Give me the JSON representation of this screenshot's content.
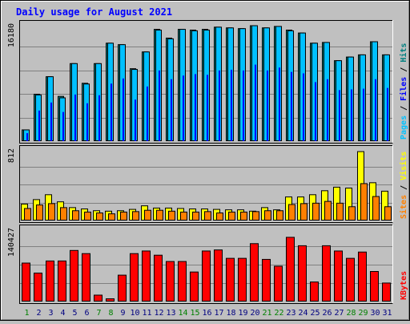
{
  "chart_data": {
    "type": "bar",
    "title": "Daily usage for August 2021",
    "categories": [
      "1",
      "2",
      "3",
      "4",
      "5",
      "6",
      "7",
      "8",
      "9",
      "10",
      "11",
      "12",
      "13",
      "14",
      "15",
      "16",
      "17",
      "18",
      "19",
      "20",
      "21",
      "22",
      "23",
      "24",
      "25",
      "26",
      "27",
      "28",
      "29",
      "30",
      "31"
    ],
    "weekend_days": [
      "1",
      "7",
      "8",
      "14",
      "15",
      "21",
      "22",
      "28",
      "29"
    ],
    "colors": {
      "title": "#0000ff",
      "pages": "#00c0ff",
      "pages_dark": "#007fb0",
      "files": "#0000ff",
      "hits": "#008080",
      "hits_light": "#00a0a0",
      "sites": "#ff8000",
      "visits": "#ffff00",
      "kbytes": "#ff0000",
      "weekday_label": "#000080",
      "weekend_label": "#008000",
      "panel_bg": "#c0c0c0"
    },
    "panels": [
      {
        "name": "hits-files-pages",
        "max_label": "16180",
        "ylim": [
          0,
          16180
        ],
        "grid": true,
        "legend": [
          {
            "text": "Pages",
            "color": "#00c0ff"
          },
          {
            "text": " / ",
            "color": "#000000"
          },
          {
            "text": "Files",
            "color": "#0000ff"
          },
          {
            "text": " / ",
            "color": "#000000"
          },
          {
            "text": "Hits",
            "color": "#008080"
          }
        ],
        "series": [
          {
            "name": "Hits",
            "values": [
              1600,
              6500,
              8900,
              6200,
              10700,
              8000,
              10700,
              13500,
              13300,
              10000,
              12300,
              15400,
              14200,
              15400,
              15300,
              15400,
              15700,
              15600,
              15500,
              15900,
              15600,
              15800,
              15300,
              14900,
              13500,
              13600,
              11100,
              11600,
              11900,
              13700,
              11900
            ]
          },
          {
            "name": "Files",
            "values": [
              1100,
              4200,
              5300,
              4000,
              6400,
              5200,
              6300,
              7900,
              8600,
              5700,
              7500,
              9700,
              8500,
              9000,
              9200,
              9100,
              9700,
              9800,
              9700,
              10500,
              9700,
              10100,
              9500,
              9300,
              8100,
              8500,
              7000,
              7100,
              7200,
              8500,
              7300
            ]
          },
          {
            "name": "Pages",
            "values": [
              1600,
              6400,
              8900,
              6000,
              10700,
              7900,
              10700,
              13500,
              13300,
              9900,
              12300,
              15300,
              14100,
              15400,
              15200,
              15300,
              15700,
              15600,
              15500,
              15900,
              15600,
              15800,
              15200,
              14900,
              13500,
              13600,
              11100,
              11600,
              11900,
              13700,
              11900
            ]
          }
        ]
      },
      {
        "name": "visits-sites",
        "max_label": "812",
        "ylim": [
          0,
          812
        ],
        "grid": true,
        "legend": [
          {
            "text": "Sites",
            "color": "#ff8000"
          },
          {
            "text": " / ",
            "color": "#000000"
          },
          {
            "text": "Visits",
            "color": "#ffff00"
          }
        ],
        "series": [
          {
            "name": "Visits",
            "values": [
              190,
              240,
              295,
              215,
              150,
              135,
              115,
              110,
              115,
              130,
              170,
              145,
              145,
              140,
              135,
              135,
              130,
              125,
              125,
              110,
              150,
              125,
              270,
              270,
              295,
              340,
              380,
              370,
              780,
              430,
              335
            ]
          },
          {
            "name": "Sites",
            "values": [
              140,
              180,
              195,
              150,
              115,
              100,
              90,
              80,
              100,
              105,
              120,
              120,
              110,
              100,
              100,
              105,
              90,
              100,
              100,
              105,
              115,
              115,
              185,
              195,
              200,
              220,
              200,
              160,
              420,
              275,
              160
            ]
          }
        ]
      },
      {
        "name": "kbytes",
        "max_label": "140427",
        "ylim": [
          0,
          140427
        ],
        "grid": true,
        "legend": [
          {
            "text": "KBytes",
            "color": "#ff0000"
          }
        ],
        "series": [
          {
            "name": "KBytes",
            "values": [
              74000,
              55000,
              78000,
              78000,
              98000,
              92000,
              13000,
              6000,
              51000,
              92000,
              97000,
              89000,
              77000,
              77000,
              57000,
              97000,
              99000,
              83000,
              83000,
              111000,
              81000,
              68000,
              123000,
              107000,
              38000,
              107000,
              97000,
              83000,
              95000,
              58000,
              36000
            ]
          }
        ]
      }
    ]
  }
}
